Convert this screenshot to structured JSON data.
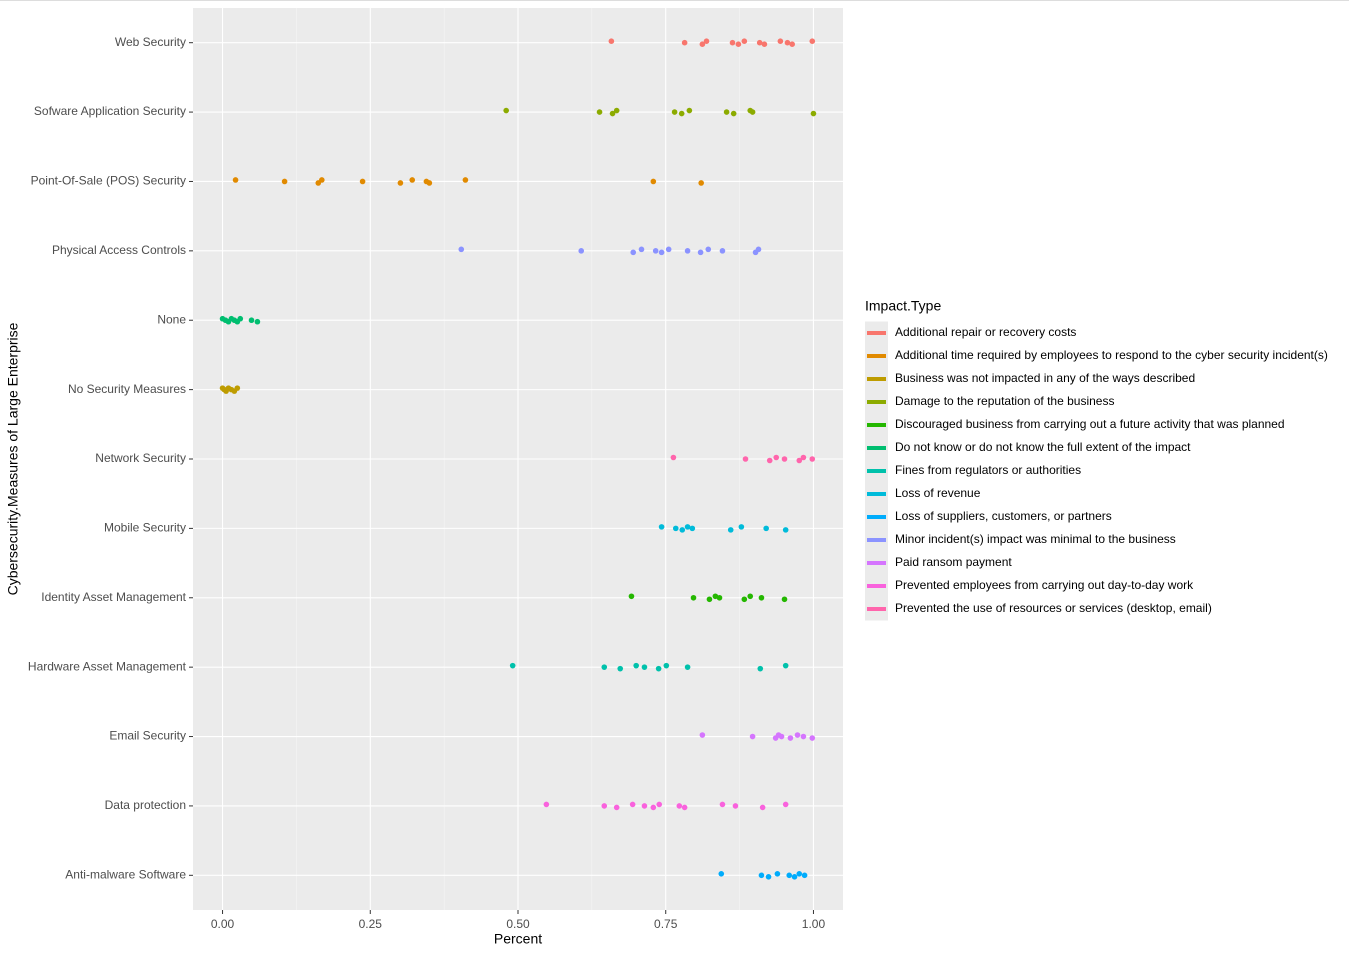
{
  "chart_data": {
    "type": "strip",
    "x_label": "Percent",
    "y_label": "Cybersecurity.Measures of Large Enterprise",
    "legend_title": "Impact.Type",
    "legend_position": "right",
    "grid": true,
    "xlim": [
      -0.05,
      1.05
    ],
    "xticks": [
      {
        "value": 0,
        "label": "0.00"
      },
      {
        "value": 0.25,
        "label": "0.25"
      },
      {
        "value": 0.5,
        "label": "0.50"
      },
      {
        "value": 0.75,
        "label": "0.75"
      },
      {
        "value": 1,
        "label": "1.00"
      }
    ],
    "categories": [
      "Web Security",
      "Sofware Application Security",
      "Point-Of-Sale (POS) Security",
      "Physical Access Controls",
      "None",
      "No Security Measures",
      "Network Security",
      "Mobile Security",
      "Identity Asset Management",
      "Hardware Asset Management",
      "Email Security",
      "Data protection",
      "Anti-malware Software"
    ],
    "series": [
      {
        "name": "Additional repair or recovery costs",
        "color": "#F8766D",
        "values": [
          [
            0.658,
            0.782,
            0.812,
            0.819,
            0.863,
            0.873,
            0.883,
            0.909,
            0.917,
            0.944,
            0.956,
            0.964,
            0.998
          ],
          null,
          null,
          null,
          null,
          null,
          null,
          null,
          null,
          null,
          null,
          null,
          null
        ]
      },
      {
        "name": "Additional time required by employees to respond to the cyber security incident(s)",
        "color": "#E18A00",
        "values": [
          null,
          null,
          [
            0.022,
            0.105,
            0.162,
            0.168,
            0.237,
            0.301,
            0.321,
            0.345,
            0.35,
            0.411,
            0.729,
            0.81
          ],
          null,
          null,
          null,
          null,
          null,
          null,
          null,
          null,
          null,
          null
        ]
      },
      {
        "name": "Business was not impacted in any of the ways described",
        "color": "#BE9C00",
        "values": [
          null,
          null,
          null,
          null,
          null,
          [
            0,
            0.003,
            0.006,
            0.01,
            0.015,
            0.02,
            0.025
          ],
          null,
          null,
          null,
          null,
          null,
          null,
          null
        ]
      },
      {
        "name": "Damage to the reputation of the business",
        "color": "#8CAB00",
        "values": [
          null,
          [
            0.48,
            0.638,
            0.66,
            0.667,
            0.765,
            0.777,
            0.79,
            0.853,
            0.865,
            0.893,
            0.897,
            1
          ],
          null,
          null,
          null,
          null,
          null,
          null,
          null,
          null,
          null,
          null,
          null
        ]
      },
      {
        "name": "Discouraged business from carrying out a future activity that was planned",
        "color": "#24B700",
        "values": [
          null,
          null,
          null,
          null,
          null,
          null,
          null,
          null,
          [
            0.692,
            0.797,
            0.824,
            0.834,
            0.841,
            0.883,
            0.893,
            0.912,
            0.951
          ],
          null,
          null,
          null,
          null
        ]
      },
      {
        "name": "Do not know or do not know the full extent of the impact",
        "color": "#00BE70",
        "values": [
          null,
          null,
          null,
          null,
          [
            0,
            0.005,
            0.01,
            0.015,
            0.02,
            0.025,
            0.03,
            0.049,
            0.059
          ],
          null,
          null,
          null,
          null,
          null,
          null,
          null,
          null
        ]
      },
      {
        "name": "Fines from regulators or authorities",
        "color": "#00C1AB",
        "values": [
          null,
          null,
          null,
          null,
          null,
          null,
          null,
          null,
          null,
          [
            0.491,
            0.646,
            0.673,
            0.7,
            0.714,
            0.738,
            0.751,
            0.787,
            0.91,
            0.953
          ],
          null,
          null,
          null
        ]
      },
      {
        "name": "Loss of revenue",
        "color": "#00BBDA",
        "values": [
          null,
          null,
          null,
          null,
          null,
          null,
          null,
          [
            0.743,
            0.767,
            0.778,
            0.787,
            0.795,
            0.86,
            0.878,
            0.92,
            0.953
          ],
          null,
          null,
          null,
          null,
          null
        ]
      },
      {
        "name": "Loss of suppliers, customers, or partners",
        "color": "#00ACFC",
        "values": [
          null,
          null,
          null,
          null,
          null,
          null,
          null,
          null,
          null,
          null,
          null,
          null,
          [
            0.844,
            0.912,
            0.924,
            0.939,
            0.959,
            0.968,
            0.976,
            0.985
          ]
        ]
      },
      {
        "name": "Minor incident(s) impact was minimal to the business",
        "color": "#8B93FF",
        "values": [
          null,
          null,
          null,
          [
            0.404,
            0.607,
            0.695,
            0.709,
            0.733,
            0.743,
            0.755,
            0.787,
            0.809,
            0.822,
            0.846,
            0.902,
            0.907
          ],
          null,
          null,
          null,
          null,
          null,
          null,
          null,
          null,
          null
        ]
      },
      {
        "name": "Paid ransom payment",
        "color": "#D575FE",
        "values": [
          null,
          null,
          null,
          null,
          null,
          null,
          null,
          null,
          null,
          null,
          [
            0.812,
            0.897,
            0.936,
            0.941,
            0.946,
            0.961,
            0.973,
            0.983,
            0.998
          ],
          null,
          null
        ]
      },
      {
        "name": "Prevented employees from carrying out day-to-day work",
        "color": "#F962DD",
        "values": [
          null,
          null,
          null,
          null,
          null,
          null,
          null,
          null,
          null,
          null,
          null,
          [
            0.548,
            0.646,
            0.667,
            0.694,
            0.714,
            0.729,
            0.739,
            0.773,
            0.782,
            0.846,
            0.868,
            0.914,
            0.953
          ],
          null
        ]
      },
      {
        "name": "Prevented the use of resources or services (desktop, email)",
        "color": "#FF65AC",
        "values": [
          null,
          null,
          null,
          null,
          null,
          null,
          [
            0.763,
            0.885,
            0.926,
            0.937,
            0.951,
            0.976,
            0.983,
            0.998
          ],
          null,
          null,
          null,
          null,
          null,
          null
        ]
      }
    ]
  }
}
